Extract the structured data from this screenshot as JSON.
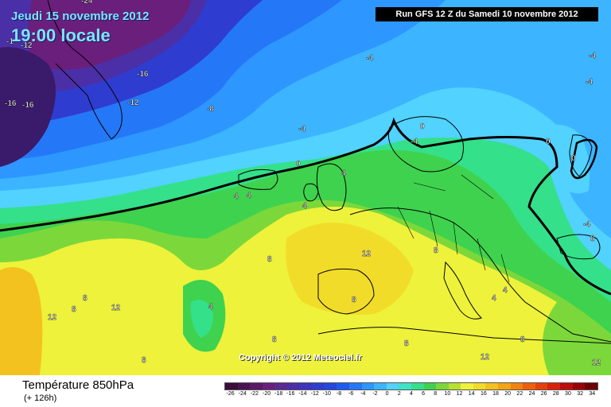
{
  "header": {
    "date": "Jeudi 15 novembre 2012",
    "time": "19:00 locale",
    "run": "Run GFS 12 Z du Samedi 10 novembre 2012"
  },
  "copyright": "Copyright © 2012 Meteociel.fr",
  "footer": {
    "title": "Température 850hPa",
    "subtitle": "(+ 126h)"
  },
  "legend": {
    "ticks": [
      "-26",
      "-24",
      "-22",
      "-20",
      "-18",
      "-16",
      "-14",
      "-12",
      "-10",
      "-8",
      "-6",
      "-4",
      "-2",
      "0",
      "2",
      "4",
      "6",
      "8",
      "10",
      "12",
      "14",
      "16",
      "18",
      "20",
      "22",
      "24",
      "26",
      "28",
      "30",
      "32",
      "34"
    ],
    "colors": [
      "#3a0f3a",
      "#4a1450",
      "#5a1a66",
      "#6a1f7c",
      "#5a2a90",
      "#4b2fa6",
      "#3d35bc",
      "#2f3cd0",
      "#2447e0",
      "#1e5cf0",
      "#2478f8",
      "#2e96ff",
      "#3cb4ff",
      "#52d2ff",
      "#3fe3c8",
      "#34e08a",
      "#3fd24e",
      "#7cd83a",
      "#b8e030",
      "#eef23a",
      "#f2dc2a",
      "#f4c21e",
      "#f4a414",
      "#f2820e",
      "#ee600c",
      "#e6400a",
      "#d8220a",
      "#c00c0a",
      "#9a0008",
      "#6c0006"
    ]
  },
  "map_labels": [
    {
      "text": "-24"
    },
    {
      "text": "-1"
    },
    {
      "text": "-12"
    },
    {
      "text": "-16"
    },
    {
      "text": "-16"
    },
    {
      "text": "-16"
    },
    {
      "text": "-12"
    },
    {
      "text": "-8"
    },
    {
      "text": "-4"
    },
    {
      "text": "-4"
    },
    {
      "text": "-4"
    },
    {
      "text": "-4"
    },
    {
      "text": "-4"
    },
    {
      "text": "0"
    },
    {
      "text": "0"
    },
    {
      "text": "0"
    },
    {
      "text": "0"
    },
    {
      "text": "-4"
    },
    {
      "text": "4"
    },
    {
      "text": "4"
    },
    {
      "text": "4"
    },
    {
      "text": "4"
    },
    {
      "text": "8"
    },
    {
      "text": "8"
    },
    {
      "text": "8"
    },
    {
      "text": "12"
    },
    {
      "text": "8"
    },
    {
      "text": "4"
    },
    {
      "text": "12"
    },
    {
      "text": "8"
    },
    {
      "text": "8"
    },
    {
      "text": "12"
    },
    {
      "text": "8"
    },
    {
      "text": "8"
    },
    {
      "text": "4"
    },
    {
      "text": "8"
    },
    {
      "text": "8"
    },
    {
      "text": "12"
    },
    {
      "text": "12"
    },
    {
      "text": "4"
    }
  ]
}
